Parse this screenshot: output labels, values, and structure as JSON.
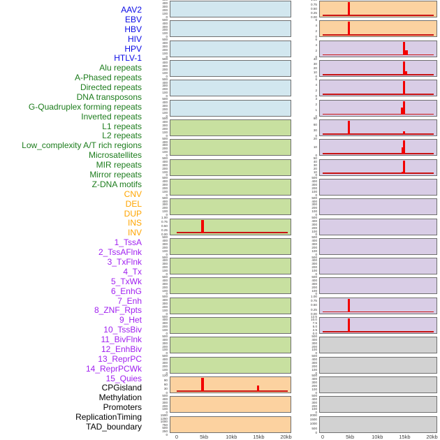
{
  "figure": {
    "description": "Profiles of genomic features around regions, two panel columns over a 0-20kb window",
    "background": "#ffffff"
  },
  "colors": {
    "label": {
      "virus": "#0a0ae6",
      "repeat": "#1c7c1c",
      "sv": "#ffa500",
      "chromatin": "#a020f0",
      "other": "#000000"
    },
    "panel": {
      "virus": "#d2e7ef",
      "repeat": "#c8e0a0",
      "sv": "#fcd2a0",
      "chromatin": "#d9cde6",
      "other": "#d2d2d2"
    },
    "spike": "#f20000",
    "baseline": "#c81414",
    "border": "#6f6f6f",
    "axis_text": "#3f3f3f"
  },
  "chart_data": {
    "type": "area",
    "x_axis": {
      "ticks": [
        "0",
        "5kb",
        "10kb",
        "15kb",
        "20kb"
      ],
      "range_kb": [
        0,
        20
      ]
    },
    "grid": {
      "columns": 2,
      "rows": 22,
      "order": "column-major"
    },
    "features": [
      {
        "label": "AAV2",
        "category": "virus",
        "column": "left",
        "row": 1,
        "yticks": [
          "500",
          "400",
          "300",
          "200",
          "100",
          "0"
        ],
        "spikes": [],
        "baseline": false
      },
      {
        "label": "EBV",
        "category": "virus",
        "column": "left",
        "row": 2,
        "yticks": [
          "500",
          "400",
          "300",
          "200",
          "100",
          "0"
        ],
        "spikes": [],
        "baseline": false
      },
      {
        "label": "HBV",
        "category": "virus",
        "column": "left",
        "row": 3,
        "yticks": [
          "500",
          "400",
          "300",
          "200",
          "100",
          "0"
        ],
        "spikes": [],
        "baseline": false
      },
      {
        "label": "HIV",
        "category": "virus",
        "column": "left",
        "row": 4,
        "yticks": [
          "500",
          "400",
          "300",
          "200",
          "100",
          "0"
        ],
        "spikes": [],
        "baseline": false
      },
      {
        "label": "HPV",
        "category": "virus",
        "column": "left",
        "row": 5,
        "yticks": [
          "500",
          "400",
          "300",
          "200",
          "100",
          "0"
        ],
        "spikes": [],
        "baseline": false
      },
      {
        "label": "HTLV-1",
        "category": "virus",
        "column": "left",
        "row": 6,
        "yticks": [
          "500",
          "400",
          "300",
          "200",
          "100",
          "0"
        ],
        "spikes": [],
        "baseline": false
      },
      {
        "label": "Alu repeats",
        "category": "repeat",
        "column": "left",
        "row": 7,
        "yticks": [
          "500",
          "400",
          "300",
          "200",
          "100",
          "0"
        ],
        "spikes": [],
        "baseline": false
      },
      {
        "label": "A-Phased repeats",
        "category": "repeat",
        "column": "left",
        "row": 8,
        "yticks": [
          "500",
          "400",
          "300",
          "200",
          "100",
          "0"
        ],
        "spikes": [],
        "baseline": false
      },
      {
        "label": "Directed repeats",
        "category": "repeat",
        "column": "left",
        "row": 9,
        "yticks": [
          "500",
          "400",
          "300",
          "200",
          "100",
          "0"
        ],
        "spikes": [],
        "baseline": false
      },
      {
        "label": "DNA transposons",
        "category": "repeat",
        "column": "left",
        "row": 10,
        "yticks": [
          "500",
          "400",
          "300",
          "200",
          "100",
          "0"
        ],
        "spikes": [],
        "baseline": false
      },
      {
        "label": "G-Quadruplex forming repeats",
        "category": "repeat",
        "column": "left",
        "row": 11,
        "yticks": [
          "500",
          "400",
          "300",
          "200",
          "100",
          "0"
        ],
        "spikes": [],
        "baseline": false
      },
      {
        "label": "Inverted repeats",
        "category": "repeat",
        "column": "left",
        "row": 12,
        "yticks": [
          "1.00",
          "0.75",
          "0.50",
          "0.25",
          "0.00"
        ],
        "spikes": [
          {
            "kb": 4.6,
            "h": 1.0
          }
        ],
        "baseline": true
      },
      {
        "label": "L1 repeats",
        "category": "repeat",
        "column": "left",
        "row": 13,
        "yticks": [
          "500",
          "400",
          "300",
          "200",
          "100",
          "0"
        ],
        "spikes": [],
        "baseline": false
      },
      {
        "label": "L2 repeats",
        "category": "repeat",
        "column": "left",
        "row": 14,
        "yticks": [
          "500",
          "400",
          "300",
          "200",
          "100",
          "0"
        ],
        "spikes": [],
        "baseline": false
      },
      {
        "label": "Low_complexity A/T rich regions",
        "category": "repeat",
        "column": "left",
        "row": 15,
        "yticks": [
          "500",
          "400",
          "300",
          "200",
          "100",
          "0"
        ],
        "spikes": [],
        "baseline": false
      },
      {
        "label": "Microsatellites",
        "category": "repeat",
        "column": "left",
        "row": 16,
        "yticks": [
          "500",
          "400",
          "300",
          "200",
          "100",
          "0"
        ],
        "spikes": [],
        "baseline": false
      },
      {
        "label": "MIR repeats",
        "category": "repeat",
        "column": "left",
        "row": 17,
        "yticks": [
          "500",
          "400",
          "300",
          "200",
          "100",
          "0"
        ],
        "spikes": [],
        "baseline": false
      },
      {
        "label": "Mirror repeats",
        "category": "repeat",
        "column": "left",
        "row": 18,
        "yticks": [
          "500",
          "400",
          "300",
          "200",
          "100",
          "0"
        ],
        "spikes": [],
        "baseline": false
      },
      {
        "label": "Z-DNA motifs",
        "category": "repeat",
        "column": "left",
        "row": 19,
        "yticks": [
          "500",
          "400",
          "300",
          "200",
          "100",
          "0"
        ],
        "spikes": [],
        "baseline": false
      },
      {
        "label": "CNV",
        "category": "sv",
        "column": "left",
        "row": 20,
        "yticks": [
          "120",
          "90",
          "60",
          "30",
          "0"
        ],
        "spikes": [
          {
            "kb": 4.6,
            "h": 1.0
          },
          {
            "kb": 14.8,
            "h": 0.46
          }
        ],
        "baseline": true
      },
      {
        "label": "DEL",
        "category": "sv",
        "column": "left",
        "row": 21,
        "yticks": [
          "500",
          "400",
          "300",
          "200",
          "100",
          "0"
        ],
        "spikes": [],
        "baseline": false
      },
      {
        "label": "DUP",
        "category": "sv",
        "column": "left",
        "row": 22,
        "yticks": [
          "1500",
          "1250",
          "1000",
          "750",
          "500",
          "250",
          "0"
        ],
        "spikes": [],
        "baseline": false
      },
      {
        "label": "INS",
        "category": "sv",
        "column": "right",
        "row": 1,
        "yticks": [
          "1.00",
          "0.75",
          "0.50",
          "0.25",
          "0.00"
        ],
        "spikes": [
          {
            "kb": 4.7,
            "h": 1.0
          }
        ],
        "baseline": true
      },
      {
        "label": "INV",
        "category": "sv",
        "column": "right",
        "row": 2,
        "yticks": [
          "6",
          "4",
          "2",
          "0"
        ],
        "spikes": [
          {
            "kb": 4.7,
            "h": 1.0
          }
        ],
        "baseline": true
      },
      {
        "label": "1_TssA",
        "category": "chromatin",
        "column": "right",
        "row": 3,
        "yticks": [
          "6",
          "4",
          "2",
          "0"
        ],
        "spikes": [
          {
            "kb": 14.8,
            "h": 1.0
          },
          {
            "kb": 15.2,
            "h": 0.35
          }
        ],
        "baseline": true
      },
      {
        "label": "2_TssAFlnk",
        "category": "chromatin",
        "column": "right",
        "row": 4,
        "yticks": [
          "40",
          "30",
          "20",
          "10",
          "0"
        ],
        "spikes": [
          {
            "kb": 14.8,
            "h": 1.0
          },
          {
            "kb": 15.1,
            "h": 0.28
          }
        ],
        "baseline": true
      },
      {
        "label": "3_TxFlnk",
        "category": "chromatin",
        "column": "right",
        "row": 5,
        "yticks": [
          "6",
          "4",
          "2",
          "0"
        ],
        "spikes": [
          {
            "kb": 14.8,
            "h": 1.0
          }
        ],
        "baseline": true
      },
      {
        "label": "4_Tx",
        "category": "chromatin",
        "column": "right",
        "row": 6,
        "yticks": [
          "3",
          "2",
          "1",
          "0"
        ],
        "spikes": [
          {
            "kb": 14.45,
            "h": 0.5
          },
          {
            "kb": 14.8,
            "h": 1.0
          }
        ],
        "baseline": true
      },
      {
        "label": "5_TxWk",
        "category": "chromatin",
        "column": "right",
        "row": 7,
        "yticks": [
          "90",
          "60",
          "30",
          "0"
        ],
        "spikes": [
          {
            "kb": 4.7,
            "h": 1.0
          },
          {
            "kb": 14.8,
            "h": 0.22
          }
        ],
        "baseline": true
      },
      {
        "label": "6_EnhG",
        "category": "chromatin",
        "column": "right",
        "row": 8,
        "yticks": [
          "20",
          "10",
          "0"
        ],
        "spikes": [
          {
            "kb": 14.5,
            "h": 0.5
          },
          {
            "kb": 14.8,
            "h": 1.0
          }
        ],
        "baseline": true
      },
      {
        "label": "7_Enh",
        "category": "chromatin",
        "column": "right",
        "row": 9,
        "yticks": [
          "50",
          "40",
          "30",
          "20",
          "10",
          "0"
        ],
        "spikes": [
          {
            "kb": 14.5,
            "h": 0.15
          },
          {
            "kb": 14.8,
            "h": 1.0
          }
        ],
        "baseline": true
      },
      {
        "label": "8_ZNF_Rpts",
        "category": "chromatin",
        "column": "right",
        "row": 10,
        "yticks": [
          "500",
          "400",
          "300",
          "200",
          "100",
          "0"
        ],
        "spikes": [],
        "baseline": false
      },
      {
        "label": "9_Het",
        "category": "chromatin",
        "column": "right",
        "row": 11,
        "yticks": [
          "500",
          "400",
          "300",
          "200",
          "100",
          "0"
        ],
        "spikes": [],
        "baseline": false
      },
      {
        "label": "10_TssBiv",
        "category": "chromatin",
        "column": "right",
        "row": 12,
        "yticks": [
          "500",
          "400",
          "300",
          "200",
          "100",
          "0"
        ],
        "spikes": [],
        "baseline": false
      },
      {
        "label": "11_BivFlnk",
        "category": "chromatin",
        "column": "right",
        "row": 13,
        "yticks": [
          "500",
          "400",
          "300",
          "200",
          "100",
          "0"
        ],
        "spikes": [],
        "baseline": false
      },
      {
        "label": "12_EnhBiv",
        "category": "chromatin",
        "column": "right",
        "row": 14,
        "yticks": [
          "500",
          "400",
          "300",
          "200",
          "100",
          "0"
        ],
        "spikes": [],
        "baseline": false
      },
      {
        "label": "13_ReprPC",
        "category": "chromatin",
        "column": "right",
        "row": 15,
        "yticks": [
          "500",
          "400",
          "300",
          "200",
          "100",
          "0"
        ],
        "spikes": [],
        "baseline": false
      },
      {
        "label": "14_ReprPCWk",
        "category": "chromatin",
        "column": "right",
        "row": 16,
        "yticks": [
          "1.00",
          "0.75",
          "0.50",
          "0.25",
          "0.00"
        ],
        "spikes": [
          {
            "kb": 4.7,
            "h": 1.0
          }
        ],
        "baseline": true
      },
      {
        "label": "15_Quies",
        "category": "chromatin",
        "column": "right",
        "row": 17,
        "yticks": [
          "12.5",
          "10.0",
          "7.5",
          "5.0",
          "2.5",
          "0.0"
        ],
        "spikes": [
          {
            "kb": 4.7,
            "h": 1.0
          }
        ],
        "baseline": true
      },
      {
        "label": "CPGisland",
        "category": "other",
        "column": "right",
        "row": 18,
        "yticks": [
          "500",
          "400",
          "300",
          "200",
          "100",
          "0"
        ],
        "spikes": [],
        "baseline": false
      },
      {
        "label": "Methylation",
        "category": "other",
        "column": "right",
        "row": 19,
        "yticks": [
          "500",
          "400",
          "300",
          "200",
          "100",
          "0"
        ],
        "spikes": [],
        "baseline": false
      },
      {
        "label": "Promoters",
        "category": "other",
        "column": "right",
        "row": 20,
        "yticks": [
          "500",
          "400",
          "300",
          "200",
          "100",
          "0"
        ],
        "spikes": [],
        "baseline": false
      },
      {
        "label": "ReplicationTiming",
        "category": "other",
        "column": "right",
        "row": 21,
        "yticks": [
          "500",
          "400",
          "300",
          "200",
          "100",
          "0"
        ],
        "spikes": [],
        "baseline": false
      },
      {
        "label": "TAD_boundary",
        "category": "other",
        "column": "right",
        "row": 22,
        "yticks": [
          "2000",
          "1500",
          "1000",
          "500",
          "0"
        ],
        "spikes": [],
        "baseline": false
      }
    ]
  }
}
